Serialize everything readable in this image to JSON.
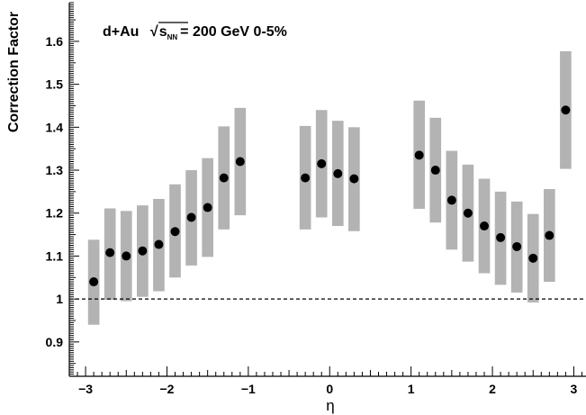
{
  "chart_data": {
    "type": "scatter",
    "title_parts": {
      "prefix": "d+Au",
      "radical": "√",
      "var": "s",
      "sub": "NN",
      "suffix": "= 200 GeV 0-5%"
    },
    "xlabel": "η",
    "ylabel": "Correction Factor",
    "xlim": [
      -3.2,
      3.15
    ],
    "ylim": [
      0.82,
      1.69
    ],
    "xticks": [
      -3,
      -2,
      -1,
      0,
      1,
      2,
      3
    ],
    "xtick_labels": [
      "−3",
      "−2",
      "−1",
      "0",
      "1",
      "2",
      "3"
    ],
    "yticks": [
      0.9,
      1.0,
      1.1,
      1.2,
      1.3,
      1.4,
      1.5,
      1.6
    ],
    "ytick_labels": [
      "0.9",
      "1",
      "1.1",
      "1.2",
      "1.3",
      "1.4",
      "1.5",
      "1.6"
    ],
    "reference_line": 1.0,
    "band_color": "#b3b3b3",
    "point_color": "#000000",
    "points": [
      {
        "x": -2.9,
        "y": 1.04,
        "lo": 0.94,
        "hi": 1.138
      },
      {
        "x": -2.7,
        "y": 1.108,
        "lo": 0.998,
        "hi": 1.211
      },
      {
        "x": -2.5,
        "y": 1.1,
        "lo": 0.995,
        "hi": 1.205
      },
      {
        "x": -2.3,
        "y": 1.112,
        "lo": 1.005,
        "hi": 1.218
      },
      {
        "x": -2.1,
        "y": 1.127,
        "lo": 1.018,
        "hi": 1.233
      },
      {
        "x": -1.9,
        "y": 1.157,
        "lo": 1.05,
        "hi": 1.267
      },
      {
        "x": -1.7,
        "y": 1.19,
        "lo": 1.078,
        "hi": 1.3
      },
      {
        "x": -1.5,
        "y": 1.213,
        "lo": 1.098,
        "hi": 1.328
      },
      {
        "x": -1.3,
        "y": 1.282,
        "lo": 1.162,
        "hi": 1.402
      },
      {
        "x": -1.1,
        "y": 1.32,
        "lo": 1.195,
        "hi": 1.445
      },
      {
        "x": -0.3,
        "y": 1.282,
        "lo": 1.162,
        "hi": 1.403
      },
      {
        "x": -0.1,
        "y": 1.315,
        "lo": 1.19,
        "hi": 1.44
      },
      {
        "x": 0.1,
        "y": 1.292,
        "lo": 1.17,
        "hi": 1.415
      },
      {
        "x": 0.3,
        "y": 1.28,
        "lo": 1.158,
        "hi": 1.4
      },
      {
        "x": 1.1,
        "y": 1.335,
        "lo": 1.21,
        "hi": 1.462
      },
      {
        "x": 1.3,
        "y": 1.3,
        "lo": 1.178,
        "hi": 1.422
      },
      {
        "x": 1.5,
        "y": 1.23,
        "lo": 1.115,
        "hi": 1.345
      },
      {
        "x": 1.7,
        "y": 1.2,
        "lo": 1.087,
        "hi": 1.313
      },
      {
        "x": 1.9,
        "y": 1.17,
        "lo": 1.06,
        "hi": 1.28
      },
      {
        "x": 2.1,
        "y": 1.143,
        "lo": 1.033,
        "hi": 1.25
      },
      {
        "x": 2.3,
        "y": 1.122,
        "lo": 1.015,
        "hi": 1.227
      },
      {
        "x": 2.5,
        "y": 1.095,
        "lo": 0.992,
        "hi": 1.198
      },
      {
        "x": 2.7,
        "y": 1.148,
        "lo": 1.04,
        "hi": 1.256
      },
      {
        "x": 2.9,
        "y": 1.44,
        "lo": 1.303,
        "hi": 1.577
      }
    ]
  }
}
